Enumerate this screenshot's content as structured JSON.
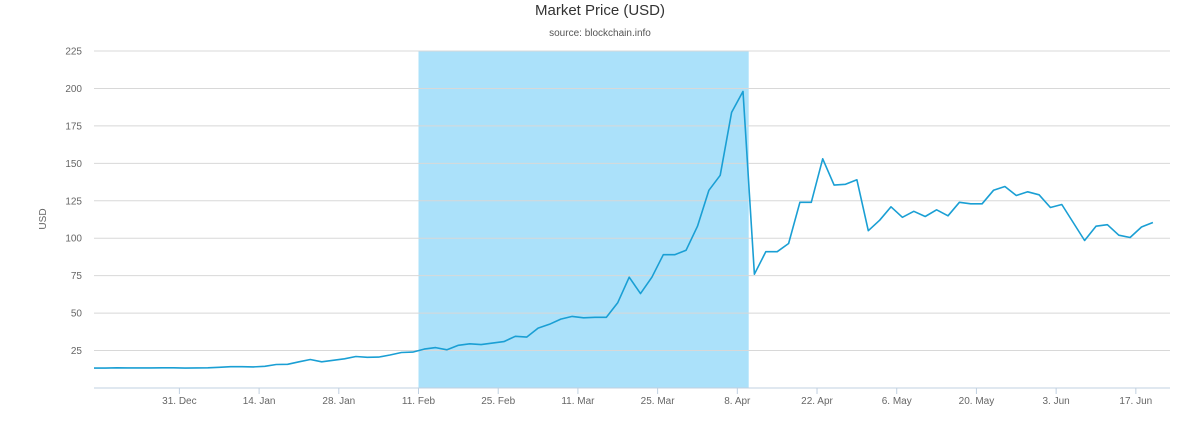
{
  "chart_data": {
    "type": "line",
    "title": "Market Price (USD)",
    "subtitle": "source: blockchain.info",
    "xlabel": "",
    "ylabel": "USD",
    "ylim": [
      0,
      225
    ],
    "xlim": [
      "2012-12-16",
      "2013-06-23"
    ],
    "yticks": [
      25,
      50,
      75,
      100,
      125,
      150,
      175,
      200,
      225
    ],
    "xticks": [
      {
        "date": "2012-12-31",
        "label": "31. Dec"
      },
      {
        "date": "2013-01-14",
        "label": "14. Jan"
      },
      {
        "date": "2013-01-28",
        "label": "28. Jan"
      },
      {
        "date": "2013-02-11",
        "label": "11. Feb"
      },
      {
        "date": "2013-02-25",
        "label": "25. Feb"
      },
      {
        "date": "2013-03-11",
        "label": "11. Mar"
      },
      {
        "date": "2013-03-25",
        "label": "25. Mar"
      },
      {
        "date": "2013-04-08",
        "label": "8. Apr"
      },
      {
        "date": "2013-04-22",
        "label": "22. Apr"
      },
      {
        "date": "2013-05-06",
        "label": "6. May"
      },
      {
        "date": "2013-05-20",
        "label": "20. May"
      },
      {
        "date": "2013-06-03",
        "label": "3. Jun"
      },
      {
        "date": "2013-06-17",
        "label": "17. Jun"
      }
    ],
    "highlight_band": {
      "from": "2013-02-11",
      "to": "2013-04-10",
      "color": "#abe1fa"
    },
    "grid": true,
    "colors": {
      "line": "#1a9fd4",
      "grid": "#d8d8d8"
    },
    "series": [
      {
        "points": [
          [
            "2012-12-16",
            13.3
          ],
          [
            "2012-12-18",
            13.3
          ],
          [
            "2012-12-20",
            13.5
          ],
          [
            "2012-12-22",
            13.4
          ],
          [
            "2012-12-24",
            13.4
          ],
          [
            "2012-12-26",
            13.4
          ],
          [
            "2012-12-28",
            13.5
          ],
          [
            "2012-12-30",
            13.5
          ],
          [
            "2013-01-01",
            13.3
          ],
          [
            "2013-01-03",
            13.4
          ],
          [
            "2013-01-05",
            13.5
          ],
          [
            "2013-01-07",
            13.8
          ],
          [
            "2013-01-09",
            14.2
          ],
          [
            "2013-01-11",
            14.2
          ],
          [
            "2013-01-13",
            14.1
          ],
          [
            "2013-01-15",
            14.5
          ],
          [
            "2013-01-17",
            15.7
          ],
          [
            "2013-01-19",
            15.8
          ],
          [
            "2013-01-21",
            17.5
          ],
          [
            "2013-01-23",
            19.0
          ],
          [
            "2013-01-25",
            17.5
          ],
          [
            "2013-01-27",
            18.5
          ],
          [
            "2013-01-29",
            19.5
          ],
          [
            "2013-01-31",
            21.0
          ],
          [
            "2013-02-02",
            20.5
          ],
          [
            "2013-02-04",
            20.6
          ],
          [
            "2013-02-06",
            22.0
          ],
          [
            "2013-02-08",
            23.7
          ],
          [
            "2013-02-10",
            24.0
          ],
          [
            "2013-02-12",
            26.0
          ],
          [
            "2013-02-14",
            27.0
          ],
          [
            "2013-02-16",
            25.5
          ],
          [
            "2013-02-18",
            28.5
          ],
          [
            "2013-02-20",
            29.5
          ],
          [
            "2013-02-22",
            29.0
          ],
          [
            "2013-02-24",
            30.0
          ],
          [
            "2013-02-26",
            31.0
          ],
          [
            "2013-02-28",
            34.5
          ],
          [
            "2013-03-02",
            34.0
          ],
          [
            "2013-03-04",
            40.0
          ],
          [
            "2013-03-06",
            42.5
          ],
          [
            "2013-03-08",
            46.0
          ],
          [
            "2013-03-10",
            47.8
          ],
          [
            "2013-03-12",
            46.9
          ],
          [
            "2013-03-14",
            47.2
          ],
          [
            "2013-03-16",
            47.2
          ],
          [
            "2013-03-18",
            57.0
          ],
          [
            "2013-03-20",
            74.0
          ],
          [
            "2013-03-22",
            63.0
          ],
          [
            "2013-03-24",
            74.0
          ],
          [
            "2013-03-26",
            89.0
          ],
          [
            "2013-03-28",
            89.0
          ],
          [
            "2013-03-30",
            92.0
          ],
          [
            "2013-04-01",
            108.0
          ],
          [
            "2013-04-03",
            132.0
          ],
          [
            "2013-04-05",
            142.0
          ],
          [
            "2013-04-07",
            184.0
          ],
          [
            "2013-04-09",
            198.0
          ],
          [
            "2013-04-11",
            76.0
          ],
          [
            "2013-04-13",
            91.0
          ],
          [
            "2013-04-15",
            91.0
          ],
          [
            "2013-04-17",
            96.5
          ],
          [
            "2013-04-19",
            124.0
          ],
          [
            "2013-04-21",
            124.0
          ],
          [
            "2013-04-23",
            153.0
          ],
          [
            "2013-04-25",
            135.5
          ],
          [
            "2013-04-27",
            136.0
          ],
          [
            "2013-04-29",
            139.0
          ],
          [
            "2013-05-01",
            105.0
          ],
          [
            "2013-05-03",
            112.0
          ],
          [
            "2013-05-05",
            121.0
          ],
          [
            "2013-05-07",
            114.0
          ],
          [
            "2013-05-09",
            118.0
          ],
          [
            "2013-05-11",
            114.5
          ],
          [
            "2013-05-13",
            119.0
          ],
          [
            "2013-05-15",
            115.0
          ],
          [
            "2013-05-17",
            124.0
          ],
          [
            "2013-05-19",
            123.0
          ],
          [
            "2013-05-21",
            123.0
          ],
          [
            "2013-05-23",
            132.0
          ],
          [
            "2013-05-25",
            134.5
          ],
          [
            "2013-05-27",
            128.5
          ],
          [
            "2013-05-29",
            131.0
          ],
          [
            "2013-05-31",
            129.0
          ],
          [
            "2013-06-02",
            120.5
          ],
          [
            "2013-06-04",
            122.5
          ],
          [
            "2013-06-06",
            110.5
          ],
          [
            "2013-06-08",
            98.5
          ],
          [
            "2013-06-10",
            108.0
          ],
          [
            "2013-06-12",
            109.0
          ],
          [
            "2013-06-14",
            102.0
          ],
          [
            "2013-06-16",
            100.5
          ],
          [
            "2013-06-18",
            107.5
          ],
          [
            "2013-06-20",
            110.5
          ]
        ]
      }
    ]
  }
}
